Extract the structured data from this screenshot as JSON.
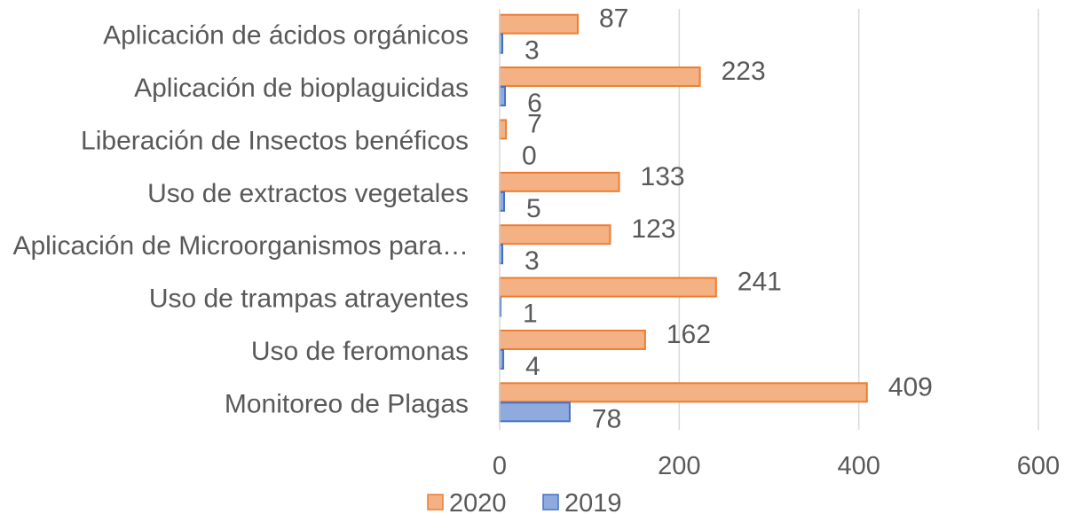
{
  "chart_data": {
    "type": "bar",
    "orientation": "horizontal",
    "categories": [
      "Aplicación de ácidos orgánicos",
      "Aplicación de bioplaguicidas",
      "Liberación de Insectos benéficos",
      "Uso de extractos vegetales",
      "Aplicación de Microorganismos para…",
      "Uso de trampas atrayentes",
      "Uso de feromonas",
      "Monitoreo de Plagas"
    ],
    "series": [
      {
        "name": "2020",
        "color": "#F4B183",
        "stroke": "#ED7D31",
        "values": [
          87,
          223,
          7,
          133,
          123,
          241,
          162,
          409
        ]
      },
      {
        "name": "2019",
        "color": "#8FAADC",
        "stroke": "#4472C4",
        "values": [
          3,
          6,
          0,
          5,
          3,
          1,
          4,
          78
        ]
      }
    ],
    "xlim": [
      0,
      600
    ],
    "xticks": [
      "0",
      "200",
      "400",
      "600"
    ],
    "grid": true,
    "legend": "bottom",
    "title": "",
    "xlabel": "",
    "ylabel": ""
  }
}
